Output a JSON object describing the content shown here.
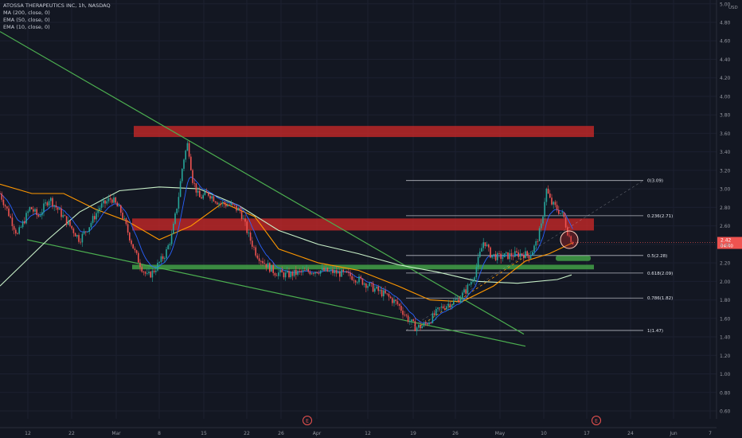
{
  "legend": {
    "title": "ATOSSA THERAPEUTICS INC, 1h, NASDAQ",
    "indicators": [
      "MA (200, close, 0)",
      "EMA (50, close, 0)",
      "EMA (10, close, 0)"
    ]
  },
  "colors": {
    "background": "#131722",
    "up": "#26a69a",
    "down": "#ef5350",
    "ema10": "#2962ff",
    "ema50": "#ff9800",
    "ma200": "#c8f0c8",
    "trendline": "#4caf50",
    "resistance_zone": "#c62828",
    "support_zone": "#43a047",
    "fib": "#d1d4dc"
  },
  "chart_data": {
    "type": "candlestick",
    "symbol": "ATOSSA THERAPEUTICS INC",
    "interval": "1h",
    "exchange": "NASDAQ",
    "y_axis_unit": "USD",
    "ylim": [
      0.5,
      5.05
    ],
    "y_ticks": [
      "5.00",
      "4.80",
      "4.60",
      "4.40",
      "4.20",
      "4.00",
      "3.80",
      "3.60",
      "3.40",
      "3.20",
      "3.00",
      "2.80",
      "2.60",
      "2.40",
      "2.20",
      "2.00",
      "1.80",
      "1.60",
      "1.40",
      "1.20",
      "1.00",
      "0.80",
      "0.60"
    ],
    "x_ticks": [
      "12",
      "22",
      "Mar",
      "8",
      "15",
      "22",
      "26",
      "Apr",
      "12",
      "19",
      "26",
      "May",
      "10",
      "17",
      "24",
      "Jun",
      "7"
    ],
    "last_price": "2.42",
    "countdown": "04:40",
    "close_path": [
      {
        "t": 0,
        "p": 2.95
      },
      {
        "t": 10,
        "p": 2.75
      },
      {
        "t": 22,
        "p": 2.5
      },
      {
        "t": 38,
        "p": 2.8
      },
      {
        "t": 48,
        "p": 2.7
      },
      {
        "t": 62,
        "p": 2.9
      },
      {
        "t": 75,
        "p": 2.75
      },
      {
        "t": 88,
        "p": 2.6
      },
      {
        "t": 100,
        "p": 2.45
      },
      {
        "t": 112,
        "p": 2.6
      },
      {
        "t": 125,
        "p": 2.8
      },
      {
        "t": 140,
        "p": 2.9
      },
      {
        "t": 152,
        "p": 2.75
      },
      {
        "t": 162,
        "p": 2.5
      },
      {
        "t": 170,
        "p": 2.3
      },
      {
        "t": 178,
        "p": 2.15
      },
      {
        "t": 185,
        "p": 2.05
      },
      {
        "t": 192,
        "p": 2.1
      },
      {
        "t": 200,
        "p": 2.2
      },
      {
        "t": 208,
        "p": 2.3
      },
      {
        "t": 216,
        "p": 2.5
      },
      {
        "t": 224,
        "p": 2.9
      },
      {
        "t": 230,
        "p": 3.3
      },
      {
        "t": 236,
        "p": 3.5
      },
      {
        "t": 242,
        "p": 3.1
      },
      {
        "t": 250,
        "p": 2.9
      },
      {
        "t": 262,
        "p": 2.95
      },
      {
        "t": 275,
        "p": 2.85
      },
      {
        "t": 290,
        "p": 2.82
      },
      {
        "t": 302,
        "p": 2.76
      },
      {
        "t": 312,
        "p": 2.5
      },
      {
        "t": 322,
        "p": 2.3
      },
      {
        "t": 332,
        "p": 2.2
      },
      {
        "t": 345,
        "p": 2.1
      },
      {
        "t": 360,
        "p": 2.07
      },
      {
        "t": 380,
        "p": 2.1
      },
      {
        "t": 400,
        "p": 2.12
      },
      {
        "t": 420,
        "p": 2.1
      },
      {
        "t": 440,
        "p": 2.06
      },
      {
        "t": 455,
        "p": 2.0
      },
      {
        "t": 470,
        "p": 1.92
      },
      {
        "t": 485,
        "p": 1.85
      },
      {
        "t": 500,
        "p": 1.75
      },
      {
        "t": 512,
        "p": 1.6
      },
      {
        "t": 522,
        "p": 1.5
      },
      {
        "t": 532,
        "p": 1.52
      },
      {
        "t": 542,
        "p": 1.6
      },
      {
        "t": 552,
        "p": 1.7
      },
      {
        "t": 562,
        "p": 1.75
      },
      {
        "t": 575,
        "p": 1.8
      },
      {
        "t": 585,
        "p": 1.9
      },
      {
        "t": 595,
        "p": 2.05
      },
      {
        "t": 603,
        "p": 2.3
      },
      {
        "t": 608,
        "p": 2.45
      },
      {
        "t": 615,
        "p": 2.3
      },
      {
        "t": 625,
        "p": 2.26
      },
      {
        "t": 640,
        "p": 2.28
      },
      {
        "t": 655,
        "p": 2.3
      },
      {
        "t": 665,
        "p": 2.28
      },
      {
        "t": 673,
        "p": 2.4
      },
      {
        "t": 680,
        "p": 2.6
      },
      {
        "t": 686,
        "p": 3.0
      },
      {
        "t": 692,
        "p": 2.85
      },
      {
        "t": 700,
        "p": 2.78
      },
      {
        "t": 708,
        "p": 2.7
      },
      {
        "t": 714,
        "p": 2.5
      },
      {
        "t": 720,
        "p": 2.42
      }
    ],
    "moving_averages": [
      {
        "name": "MA (200, close, 0)",
        "points": [
          [
            0,
            1.95
          ],
          [
            60,
            2.45
          ],
          [
            100,
            2.75
          ],
          [
            150,
            2.98
          ],
          [
            200,
            3.02
          ],
          [
            250,
            3.0
          ],
          [
            300,
            2.82
          ],
          [
            350,
            2.55
          ],
          [
            400,
            2.4
          ],
          [
            450,
            2.3
          ],
          [
            500,
            2.18
          ],
          [
            550,
            2.1
          ],
          [
            600,
            2.0
          ],
          [
            650,
            1.98
          ],
          [
            700,
            2.02
          ],
          [
            718,
            2.07
          ]
        ]
      },
      {
        "name": "EMA (50, close, 0)",
        "points": [
          [
            0,
            3.05
          ],
          [
            40,
            2.95
          ],
          [
            80,
            2.95
          ],
          [
            120,
            2.78
          ],
          [
            160,
            2.65
          ],
          [
            200,
            2.45
          ],
          [
            240,
            2.6
          ],
          [
            280,
            2.85
          ],
          [
            320,
            2.7
          ],
          [
            350,
            2.35
          ],
          [
            400,
            2.2
          ],
          [
            450,
            2.12
          ],
          [
            500,
            1.95
          ],
          [
            540,
            1.8
          ],
          [
            580,
            1.78
          ],
          [
            620,
            1.95
          ],
          [
            660,
            2.22
          ],
          [
            690,
            2.3
          ],
          [
            720,
            2.42
          ]
        ]
      }
    ],
    "zones": [
      {
        "type": "resistance",
        "low": 3.56,
        "high": 3.68,
        "t_start": 168,
        "t_end": 746
      },
      {
        "type": "resistance",
        "low": 2.55,
        "high": 2.68,
        "t_start": 166,
        "t_end": 746
      },
      {
        "type": "support",
        "low": 2.13,
        "high": 2.18,
        "t_start": 166,
        "t_end": 746
      },
      {
        "type": "support",
        "low": 2.22,
        "high": 2.28,
        "t_start": 698,
        "t_end": 742
      }
    ],
    "fibonacci": [
      {
        "label": "0(3.09)",
        "price": 3.09
      },
      {
        "label": "0.236(2.71)",
        "price": 2.71
      },
      {
        "label": "0.5(2.28)",
        "price": 2.28
      },
      {
        "label": "0.618(2.09)",
        "price": 2.09
      },
      {
        "label": "0.786(1.82)",
        "price": 1.82
      },
      {
        "label": "1(1.47)",
        "price": 1.47
      }
    ],
    "trendlines": [
      {
        "name": "descending-resistance",
        "from": [
          0,
          4.7
        ],
        "to": [
          658,
          1.43
        ]
      },
      {
        "name": "descending-support",
        "from": [
          34,
          2.45
        ],
        "to": [
          660,
          1.3
        ]
      }
    ],
    "events": [
      "E",
      "E"
    ]
  }
}
